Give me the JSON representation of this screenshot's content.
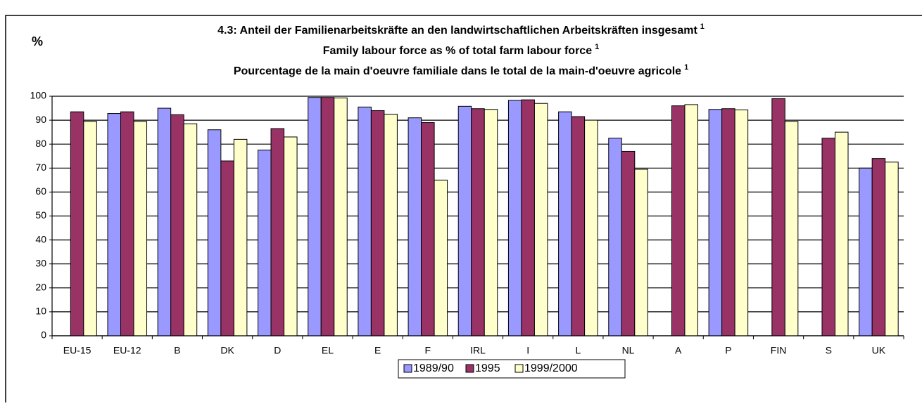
{
  "chart_data": {
    "type": "bar",
    "title_lines": [
      "4.3:  Anteil der Familienarbeitskräfte an den landwirtschaftlichen Arbeitskräften insgesamt",
      "Family labour force as % of total farm labour force",
      "Pourcentage de la main d'oeuvre familiale dans le total de la main-d'oeuvre agricole"
    ],
    "title_footnote_mark": "1",
    "y_label": "%",
    "categories": [
      "EU-15",
      "EU-12",
      "B",
      "DK",
      "D",
      "EL",
      "E",
      "F",
      "IRL",
      "I",
      "L",
      "NL",
      "A",
      "P",
      "FIN",
      "S",
      "UK"
    ],
    "series": [
      {
        "name": "1989/90",
        "color": "#9999ff",
        "values": [
          null,
          92.8,
          95,
          86,
          77.5,
          99.5,
          95.5,
          91,
          95.8,
          98.3,
          93.5,
          82.5,
          null,
          94.5,
          null,
          null,
          70
        ]
      },
      {
        "name": "1995",
        "color": "#993366",
        "values": [
          93.5,
          93.5,
          92.3,
          73,
          86.5,
          99.5,
          94,
          89,
          94.8,
          98.5,
          91.5,
          77,
          96,
          94.8,
          99,
          82.5,
          74
        ]
      },
      {
        "name": "1999/2000",
        "color": "#ffffcc",
        "values": [
          89.5,
          89.5,
          88.5,
          82,
          83,
          99.3,
          92.5,
          65,
          94.5,
          97,
          90,
          69.5,
          96.5,
          94.3,
          89.5,
          85,
          72.5
        ]
      }
    ],
    "ylim": [
      0,
      100
    ],
    "yticks": [
      0,
      10,
      20,
      30,
      40,
      50,
      60,
      70,
      80,
      90,
      100
    ],
    "grid": true,
    "legend": "bottom"
  }
}
